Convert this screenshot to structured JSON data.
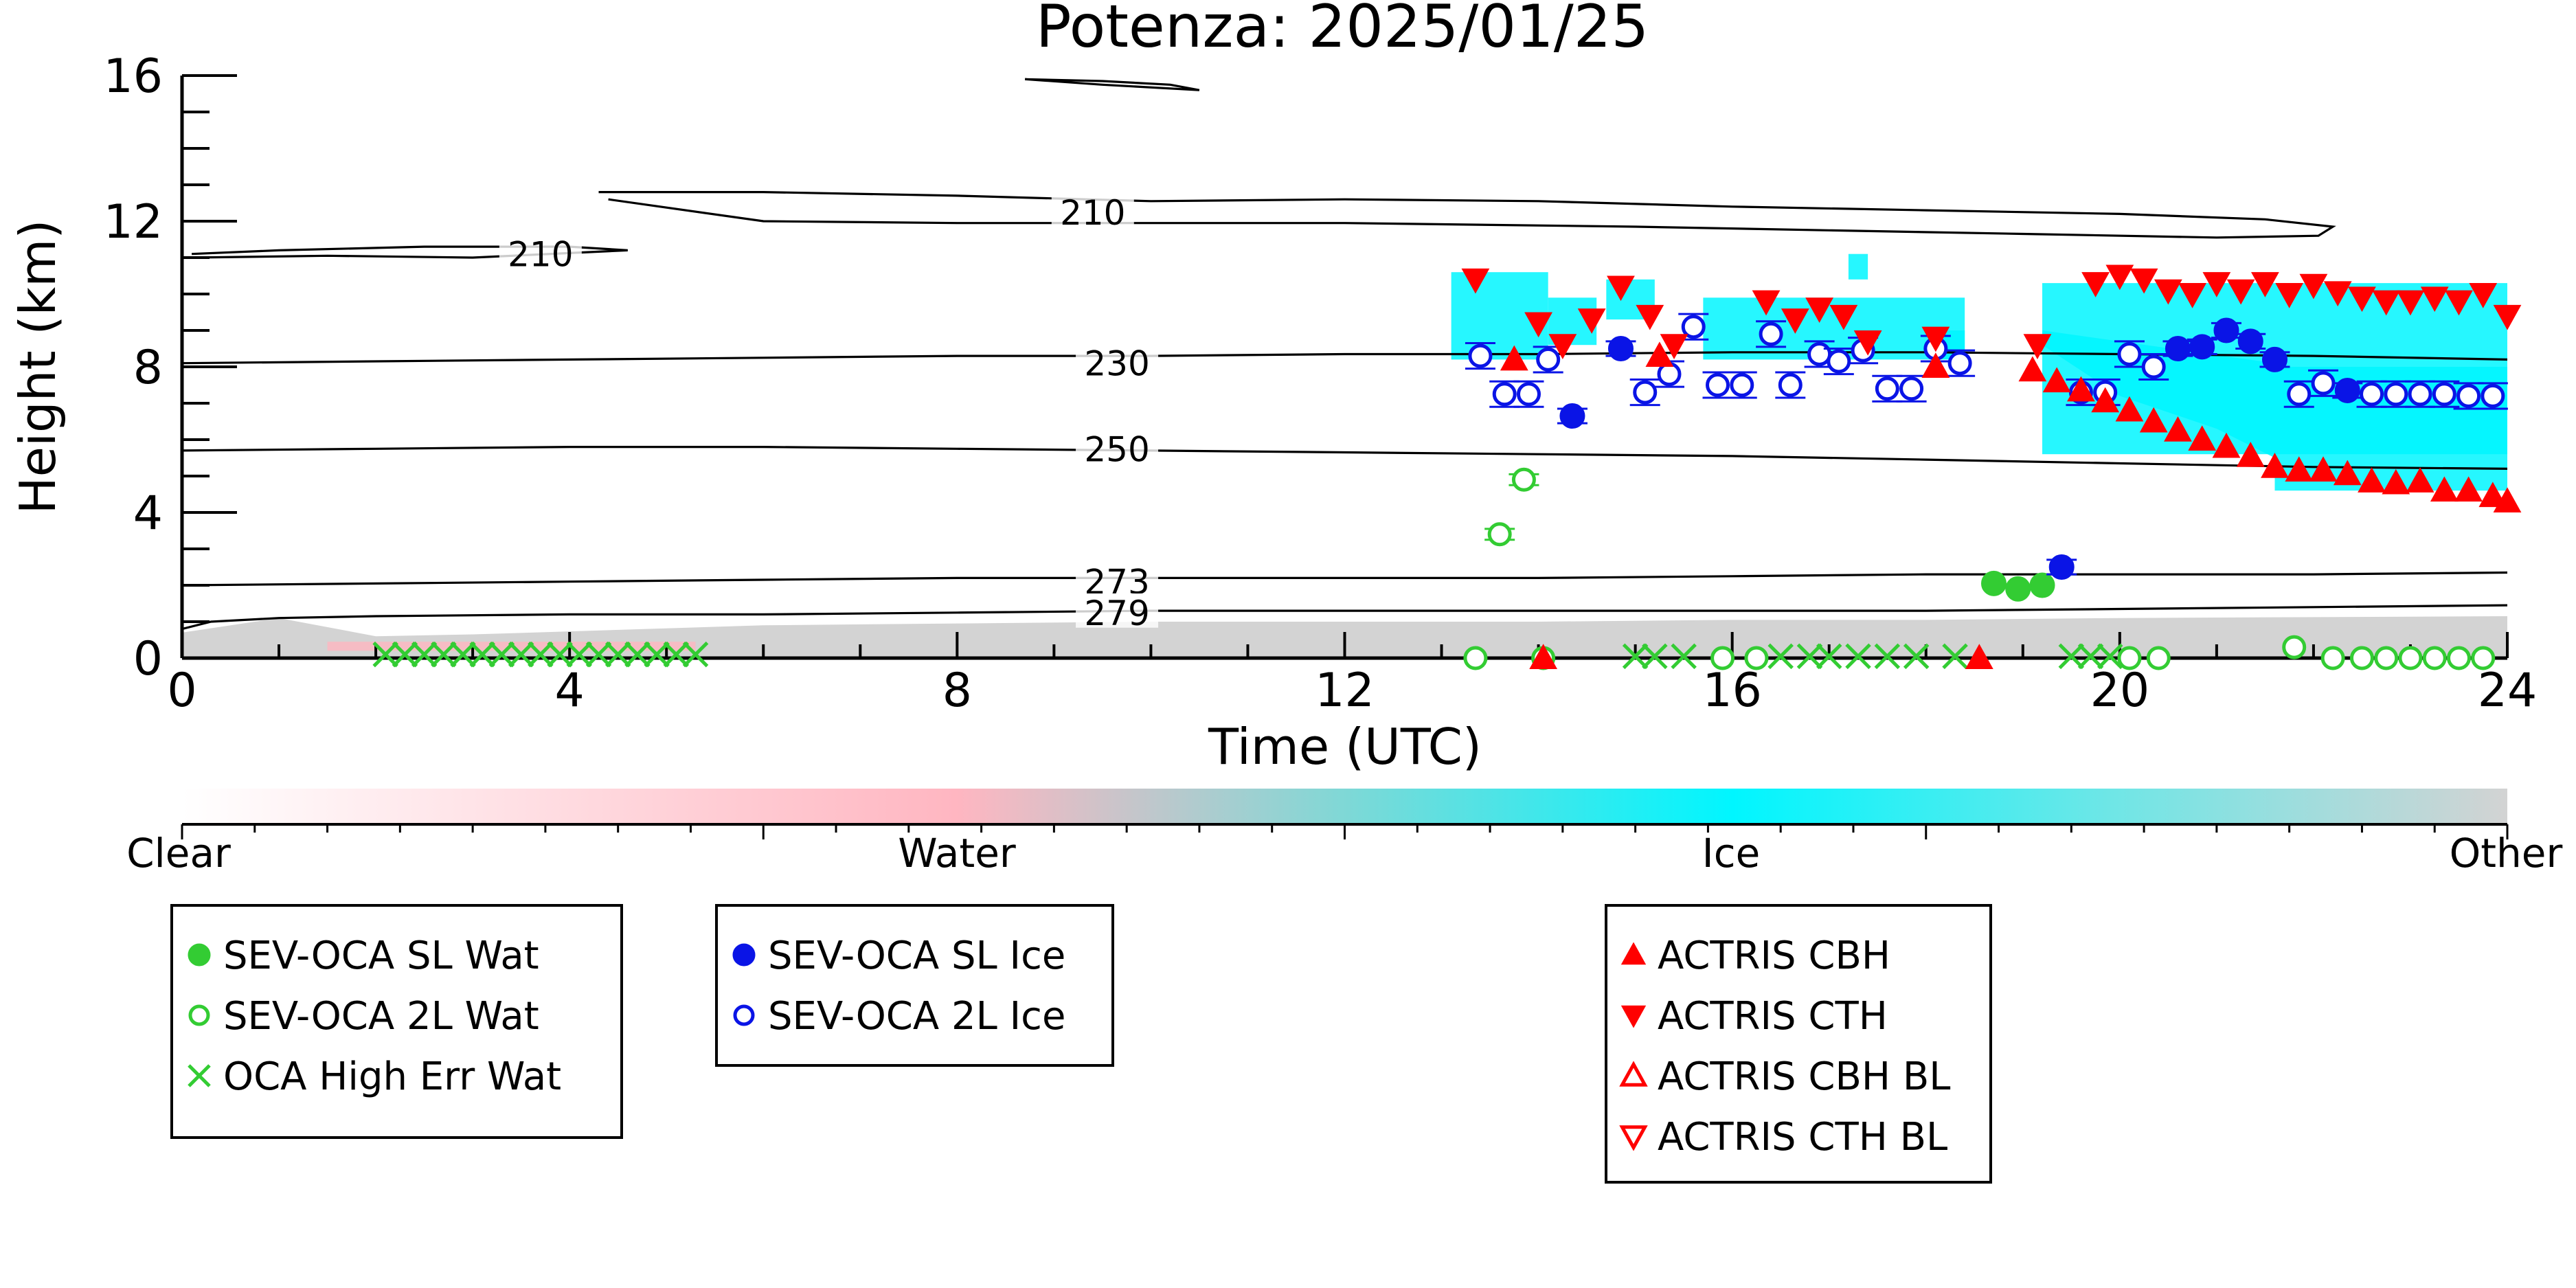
{
  "chart_data": {
    "type": "scatter",
    "title": "Potenza: 2025/01/25",
    "xlabel": "Time (UTC)",
    "ylabel": "Height (km)",
    "xlim": [
      0,
      24
    ],
    "ylim": [
      0,
      16
    ],
    "x_ticks": [
      "0",
      "4",
      "8",
      "12",
      "16",
      "20",
      "24"
    ],
    "y_ticks": [
      "0",
      "4",
      "8",
      "12",
      "16"
    ],
    "grid": false,
    "legend_placement": "bottom",
    "temperature_contours": [
      {
        "label": "210",
        "segments": [
          [
            [
              0.1,
              11.1
            ],
            [
              1,
              11.2
            ],
            [
              2.5,
              11.3
            ],
            [
              4.0,
              11.3
            ],
            [
              4.6,
              11.2
            ],
            [
              3.0,
              11.0
            ],
            [
              1.5,
              11.05
            ],
            [
              0.1,
              11.0
            ]
          ],
          [
            [
              4.3,
              12.8
            ],
            [
              6,
              12.8
            ],
            [
              8,
              12.7
            ],
            [
              10,
              12.55
            ],
            [
              12,
              12.6
            ],
            [
              14,
              12.55
            ],
            [
              16,
              12.4
            ],
            [
              18,
              12.3
            ],
            [
              20,
              12.2
            ],
            [
              21.5,
              12.05
            ],
            [
              22.2,
              11.85
            ],
            [
              22.05,
              11.6
            ],
            [
              21,
              11.55
            ],
            [
              19,
              11.65
            ],
            [
              17,
              11.75
            ],
            [
              15,
              11.85
            ],
            [
              12,
              11.95
            ],
            [
              10,
              11.95
            ],
            [
              8,
              11.95
            ],
            [
              6,
              12.0
            ],
            [
              4.4,
              12.6
            ]
          ],
          [
            [
              8.7,
              15.9
            ],
            [
              9.5,
              15.85
            ],
            [
              10.2,
              15.75
            ],
            [
              10.5,
              15.6
            ],
            [
              9.5,
              15.75
            ],
            [
              8.7,
              15.9
            ]
          ]
        ]
      },
      {
        "label": "230",
        "segments": [
          [
            [
              0.0,
              8.1
            ],
            [
              2,
              8.15
            ],
            [
              4,
              8.2
            ],
            [
              6,
              8.25
            ],
            [
              8,
              8.3
            ],
            [
              10,
              8.3
            ],
            [
              12,
              8.35
            ],
            [
              14,
              8.35
            ],
            [
              16,
              8.4
            ],
            [
              18,
              8.4
            ],
            [
              20,
              8.35
            ],
            [
              22,
              8.3
            ],
            [
              24,
              8.2
            ]
          ]
        ]
      },
      {
        "label": "250",
        "segments": [
          [
            [
              0.0,
              5.7
            ],
            [
              2,
              5.75
            ],
            [
              4,
              5.8
            ],
            [
              6,
              5.8
            ],
            [
              8,
              5.75
            ],
            [
              10,
              5.7
            ],
            [
              12,
              5.65
            ],
            [
              14,
              5.6
            ],
            [
              16,
              5.55
            ],
            [
              18,
              5.45
            ],
            [
              20,
              5.35
            ],
            [
              22,
              5.25
            ],
            [
              24,
              5.2
            ]
          ]
        ]
      },
      {
        "label": "273",
        "segments": [
          [
            [
              0.0,
              2.0
            ],
            [
              2,
              2.05
            ],
            [
              4,
              2.1
            ],
            [
              6,
              2.15
            ],
            [
              8,
              2.2
            ],
            [
              10,
              2.2
            ],
            [
              12,
              2.2
            ],
            [
              14,
              2.2
            ],
            [
              16,
              2.25
            ],
            [
              18,
              2.3
            ],
            [
              20,
              2.3
            ],
            [
              22,
              2.3
            ],
            [
              24,
              2.35
            ]
          ]
        ]
      },
      {
        "label": "279",
        "segments": [
          [
            [
              0.0,
              0.8
            ],
            [
              0.3,
              1.0
            ],
            [
              1,
              1.1
            ],
            [
              2,
              1.15
            ],
            [
              4,
              1.2
            ],
            [
              6,
              1.2
            ],
            [
              8,
              1.25
            ],
            [
              10,
              1.3
            ],
            [
              12,
              1.3
            ],
            [
              14,
              1.3
            ],
            [
              16,
              1.3
            ],
            [
              18,
              1.3
            ],
            [
              20,
              1.35
            ],
            [
              22,
              1.4
            ],
            [
              24,
              1.45
            ]
          ]
        ]
      }
    ],
    "series": [
      {
        "name": "SEV-OCA SL Wat",
        "marker": "circle-filled",
        "color": "#33cc33",
        "points": [
          [
            18.7,
            2.05
          ],
          [
            18.95,
            1.9
          ],
          [
            19.2,
            2.0
          ]
        ]
      },
      {
        "name": "SEV-OCA 2L Wat",
        "marker": "circle-open",
        "color": "#33cc33",
        "points": [
          [
            13.6,
            3.4
          ],
          [
            13.85,
            4.9
          ],
          [
            21.8,
            0.3
          ],
          [
            13.35,
            0.0
          ],
          [
            14.05,
            0.0
          ],
          [
            15.9,
            0.0
          ],
          [
            16.25,
            0.0
          ],
          [
            20.1,
            0.0
          ],
          [
            20.4,
            0.0
          ],
          [
            22.2,
            0.0
          ],
          [
            22.5,
            0.0
          ],
          [
            22.75,
            0.0
          ],
          [
            23.0,
            0.0
          ],
          [
            23.25,
            0.0
          ],
          [
            23.5,
            0.0
          ],
          [
            23.75,
            0.0
          ]
        ]
      },
      {
        "name": "OCA High Err Wat",
        "marker": "x",
        "color": "#33cc33",
        "points": [
          [
            2.1,
            0.1
          ],
          [
            2.3,
            0.1
          ],
          [
            2.5,
            0.1
          ],
          [
            2.7,
            0.1
          ],
          [
            2.9,
            0.1
          ],
          [
            3.1,
            0.1
          ],
          [
            3.3,
            0.1
          ],
          [
            3.5,
            0.1
          ],
          [
            3.7,
            0.1
          ],
          [
            3.9,
            0.1
          ],
          [
            4.1,
            0.1
          ],
          [
            4.3,
            0.1
          ],
          [
            4.5,
            0.1
          ],
          [
            4.7,
            0.1
          ],
          [
            4.9,
            0.1
          ],
          [
            5.1,
            0.1
          ],
          [
            5.3,
            0.1
          ],
          [
            15.0,
            0.05
          ],
          [
            15.2,
            0.05
          ],
          [
            15.5,
            0.05
          ],
          [
            16.5,
            0.05
          ],
          [
            16.8,
            0.05
          ],
          [
            17.0,
            0.05
          ],
          [
            17.3,
            0.05
          ],
          [
            17.6,
            0.05
          ],
          [
            17.9,
            0.05
          ],
          [
            18.3,
            0.05
          ],
          [
            19.5,
            0.05
          ],
          [
            19.7,
            0.05
          ],
          [
            19.9,
            0.05
          ]
        ]
      },
      {
        "name": "SEV-OCA SL Ice",
        "marker": "circle-filled",
        "color": "#0a14e6",
        "points": [
          [
            14.35,
            6.65
          ],
          [
            14.85,
            8.5
          ],
          [
            19.4,
            2.5
          ],
          [
            20.6,
            8.5
          ],
          [
            20.85,
            8.55
          ],
          [
            21.1,
            9.0
          ],
          [
            21.35,
            8.7
          ],
          [
            21.6,
            8.2
          ],
          [
            22.35,
            7.35
          ]
        ]
      },
      {
        "name": "SEV-OCA 2L Ice",
        "marker": "circle-open",
        "color": "#0a14e6",
        "points": [
          [
            13.4,
            8.3
          ],
          [
            13.65,
            7.25
          ],
          [
            13.9,
            7.25
          ],
          [
            14.1,
            8.2
          ],
          [
            15.1,
            7.3
          ],
          [
            15.35,
            7.8
          ],
          [
            15.6,
            9.1
          ],
          [
            15.85,
            7.5
          ],
          [
            16.1,
            7.5
          ],
          [
            16.4,
            8.9
          ],
          [
            16.6,
            7.5
          ],
          [
            16.9,
            8.35
          ],
          [
            17.1,
            8.15
          ],
          [
            17.35,
            8.45
          ],
          [
            17.6,
            7.4
          ],
          [
            17.85,
            7.4
          ],
          [
            18.1,
            8.5
          ],
          [
            18.35,
            8.1
          ],
          [
            19.6,
            7.3
          ],
          [
            19.85,
            7.3
          ],
          [
            20.1,
            8.35
          ],
          [
            20.35,
            8.0
          ],
          [
            21.85,
            7.25
          ],
          [
            22.1,
            7.55
          ],
          [
            22.6,
            7.25
          ],
          [
            22.85,
            7.25
          ],
          [
            23.1,
            7.25
          ],
          [
            23.35,
            7.25
          ],
          [
            23.6,
            7.2
          ],
          [
            23.85,
            7.2
          ]
        ]
      },
      {
        "name": "ACTRIS CBH",
        "marker": "triangle-up-filled",
        "color": "#ff0000",
        "points": [
          [
            13.75,
            8.2
          ],
          [
            14.05,
            0.0
          ],
          [
            15.25,
            8.3
          ],
          [
            18.1,
            8.0
          ],
          [
            18.55,
            0.0
          ],
          [
            19.1,
            7.9
          ],
          [
            19.35,
            7.6
          ],
          [
            19.6,
            7.35
          ],
          [
            19.85,
            7.05
          ],
          [
            20.1,
            6.8
          ],
          [
            20.35,
            6.5
          ],
          [
            20.6,
            6.25
          ],
          [
            20.85,
            6.0
          ],
          [
            21.1,
            5.8
          ],
          [
            21.35,
            5.55
          ],
          [
            21.6,
            5.25
          ],
          [
            21.85,
            5.15
          ],
          [
            22.1,
            5.15
          ],
          [
            22.35,
            5.05
          ],
          [
            22.6,
            4.85
          ],
          [
            22.85,
            4.8
          ],
          [
            23.1,
            4.85
          ],
          [
            23.35,
            4.6
          ],
          [
            23.6,
            4.6
          ],
          [
            23.85,
            4.45
          ],
          [
            24.0,
            4.3
          ]
        ]
      },
      {
        "name": "ACTRIS CTH",
        "marker": "triangle-down-filled",
        "color": "#ff0000",
        "points": [
          [
            13.35,
            10.4
          ],
          [
            14.0,
            9.2
          ],
          [
            14.25,
            8.6
          ],
          [
            14.55,
            9.3
          ],
          [
            14.85,
            10.2
          ],
          [
            15.15,
            9.4
          ],
          [
            15.4,
            8.6
          ],
          [
            16.35,
            9.8
          ],
          [
            16.65,
            9.3
          ],
          [
            16.9,
            9.6
          ],
          [
            17.15,
            9.4
          ],
          [
            17.4,
            8.7
          ],
          [
            18.1,
            8.8
          ],
          [
            19.15,
            8.6
          ],
          [
            19.75,
            10.3
          ],
          [
            20.0,
            10.5
          ],
          [
            20.25,
            10.4
          ],
          [
            20.5,
            10.1
          ],
          [
            20.75,
            10.0
          ],
          [
            21.0,
            10.3
          ],
          [
            21.25,
            10.1
          ],
          [
            21.5,
            10.3
          ],
          [
            21.75,
            10.0
          ],
          [
            22.0,
            10.25
          ],
          [
            22.25,
            10.05
          ],
          [
            22.5,
            9.9
          ],
          [
            22.75,
            9.8
          ],
          [
            23.0,
            9.8
          ],
          [
            23.25,
            9.9
          ],
          [
            23.5,
            9.8
          ],
          [
            23.75,
            10.0
          ],
          [
            24.0,
            9.4
          ]
        ]
      },
      {
        "name": "ACTRIS CBH BL",
        "marker": "triangle-up-open",
        "color": "#ff0000",
        "points": []
      },
      {
        "name": "ACTRIS CTH BL",
        "marker": "triangle-down-open",
        "color": "#ff0000",
        "points": []
      }
    ],
    "colorbar": {
      "labels": [
        "Clear",
        "Water",
        "Ice",
        "Other"
      ],
      "colors": {
        "Clear": "#ffffff",
        "Water": "#ffb6c1",
        "Ice": "#00ffff",
        "Other": "#d3d3d3"
      }
    }
  },
  "legend_groups": [
    [
      "SEV-OCA SL Wat",
      "SEV-OCA 2L Wat",
      "OCA High Err Wat"
    ],
    [
      "SEV-OCA SL Ice",
      "SEV-OCA 2L Ice"
    ],
    [
      "ACTRIS CBH",
      "ACTRIS CTH",
      "ACTRIS CBH BL",
      "ACTRIS CTH BL"
    ]
  ]
}
